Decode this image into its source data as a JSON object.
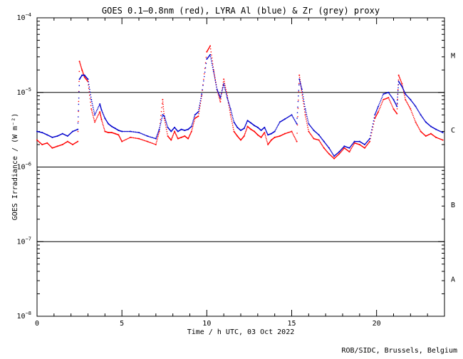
{
  "chart_data": {
    "type": "scatter",
    "title": "GOES 0.1–0.8nm (red), LYRA Al (blue) & Zr (grey) proxy",
    "xlabel": "Time / h UTC, 03 Oct 2022",
    "ylabel": "GOES Irradiance / (W m⁻²)",
    "xlim": [
      0,
      24
    ],
    "ylim_log10": [
      -8,
      -4
    ],
    "y_scale": "log",
    "grid": false,
    "x_ticks": [
      0,
      5,
      10,
      15,
      20
    ],
    "x_tick_labels": [
      "0",
      "5",
      "10",
      "15",
      "20"
    ],
    "y_ticks": [
      -8,
      -7,
      -6,
      -5,
      -4
    ],
    "y_tick_labels": [
      {
        "base": "10",
        "exp": "−8"
      },
      {
        "base": "10",
        "exp": "−7"
      },
      {
        "base": "10",
        "exp": "−6"
      },
      {
        "base": "10",
        "exp": "−5"
      },
      {
        "base": "10",
        "exp": "−4"
      }
    ],
    "class_lines": [
      -5,
      -6,
      -7
    ],
    "class_labels": [
      {
        "label": "M",
        "y_log10": -4.5
      },
      {
        "label": "C",
        "y_log10": -5.5
      },
      {
        "label": "B",
        "y_log10": -6.5
      },
      {
        "label": "A",
        "y_log10": -7.5
      }
    ],
    "series": [
      {
        "name": "GOES 0.1–0.8nm",
        "color": "#ff0000",
        "x": [
          0.0,
          0.3,
          0.6,
          0.9,
          1.2,
          1.5,
          1.8,
          2.1,
          2.4,
          2.5,
          2.65,
          2.8,
          3.0,
          3.2,
          3.4,
          3.7,
          3.8,
          4.0,
          4.2,
          4.4,
          4.6,
          4.8,
          5.0,
          5.5,
          6.0,
          6.5,
          7.0,
          7.2,
          7.4,
          7.5,
          7.7,
          7.9,
          8.1,
          8.3,
          8.5,
          8.7,
          8.9,
          9.1,
          9.3,
          9.5,
          9.7,
          10.0,
          10.2,
          10.4,
          10.6,
          10.8,
          11.0,
          11.2,
          11.4,
          11.6,
          11.8,
          12.0,
          12.2,
          12.4,
          12.6,
          12.8,
          13.0,
          13.2,
          13.4,
          13.6,
          13.8,
          14.0,
          14.3,
          14.6,
          15.0,
          15.3,
          15.45,
          15.6,
          15.8,
          16.0,
          16.3,
          16.6,
          16.9,
          17.2,
          17.5,
          17.8,
          18.1,
          18.4,
          18.7,
          19.0,
          19.3,
          19.6,
          19.9,
          20.1,
          20.4,
          20.7,
          21.0,
          21.2,
          21.3,
          21.5,
          21.7,
          22.0,
          22.3,
          22.6,
          22.9,
          23.2,
          23.5,
          23.9
        ],
        "y": [
          2.3e-06,
          2e-06,
          2.1e-06,
          1.8e-06,
          1.9e-06,
          2e-06,
          2.2e-06,
          2e-06,
          2.2e-06,
          2.6e-05,
          2e-05,
          1.6e-05,
          1.4e-05,
          6e-06,
          4e-06,
          5.5e-06,
          4.3e-06,
          3e-06,
          2.9e-06,
          2.9e-06,
          2.8e-06,
          2.7e-06,
          2.2e-06,
          2.5e-06,
          2.4e-06,
          2.2e-06,
          2e-06,
          3e-06,
          8e-06,
          4.5e-06,
          2.6e-06,
          2.3e-06,
          3e-06,
          2.4e-06,
          2.5e-06,
          2.6e-06,
          2.4e-06,
          3e-06,
          4.5e-06,
          4.8e-06,
          9e-06,
          3.5e-05,
          4.2e-05,
          2e-05,
          1.1e-05,
          7.5e-06,
          1.5e-05,
          9e-06,
          5e-06,
          3e-06,
          2.6e-06,
          2.3e-06,
          2.6e-06,
          3.5e-06,
          3.2e-06,
          3e-06,
          2.7e-06,
          2.5e-06,
          2.9e-06,
          2e-06,
          2.3e-06,
          2.5e-06,
          2.6e-06,
          2.8e-06,
          3e-06,
          2.2e-06,
          1.7e-05,
          1e-05,
          5e-06,
          3e-06,
          2.4e-06,
          2.3e-06,
          1.8e-06,
          1.5e-06,
          1.3e-06,
          1.5e-06,
          1.8e-06,
          1.6e-06,
          2.1e-06,
          2e-06,
          1.8e-06,
          2.2e-06,
          4.5e-06,
          5.5e-06,
          8e-06,
          8.5e-06,
          6e-06,
          5.2e-06,
          1.7e-05,
          1.3e-05,
          8e-06,
          6e-06,
          4e-06,
          3e-06,
          2.6e-06,
          2.8e-06,
          2.5e-06,
          2.3e-06
        ]
      },
      {
        "name": "LYRA Al proxy",
        "color": "#0000cc",
        "x": [
          0.0,
          0.3,
          0.6,
          0.9,
          1.2,
          1.5,
          1.8,
          2.1,
          2.4,
          2.5,
          2.65,
          2.8,
          3.0,
          3.2,
          3.4,
          3.7,
          3.8,
          4.0,
          4.2,
          4.4,
          4.6,
          4.8,
          5.0,
          5.5,
          6.0,
          6.5,
          7.0,
          7.2,
          7.4,
          7.5,
          7.7,
          7.9,
          8.1,
          8.3,
          8.5,
          8.7,
          8.9,
          9.1,
          9.3,
          9.5,
          9.7,
          10.0,
          10.2,
          10.4,
          10.6,
          10.8,
          11.0,
          11.2,
          11.4,
          11.6,
          11.8,
          12.0,
          12.2,
          12.4,
          12.6,
          12.8,
          13.0,
          13.2,
          13.4,
          13.6,
          13.8,
          14.0,
          14.3,
          14.6,
          15.0,
          15.3,
          15.45,
          15.6,
          15.8,
          16.0,
          16.3,
          16.6,
          16.9,
          17.2,
          17.5,
          17.8,
          18.1,
          18.4,
          18.7,
          19.0,
          19.3,
          19.6,
          19.9,
          20.1,
          20.4,
          20.7,
          21.0,
          21.2,
          21.3,
          21.5,
          21.7,
          22.0,
          22.3,
          22.6,
          22.9,
          23.2,
          23.5,
          23.9
        ],
        "y": [
          3e-06,
          2.9e-06,
          2.7e-06,
          2.5e-06,
          2.6e-06,
          2.8e-06,
          2.6e-06,
          3e-06,
          3.2e-06,
          1.5e-05,
          1.7e-05,
          1.7e-05,
          1.5e-05,
          8e-06,
          5e-06,
          7e-06,
          5.8e-06,
          4.5e-06,
          3.8e-06,
          3.5e-06,
          3.3e-06,
          3.1e-06,
          3e-06,
          3e-06,
          2.9e-06,
          2.6e-06,
          2.4e-06,
          3.2e-06,
          5e-06,
          4.8e-06,
          3.4e-06,
          3e-06,
          3.4e-06,
          3e-06,
          3.2e-06,
          3.1e-06,
          3.2e-06,
          3.5e-06,
          5e-06,
          5.5e-06,
          9.5e-06,
          2.8e-05,
          3.2e-05,
          1.9e-05,
          1.1e-05,
          8.5e-06,
          1.3e-05,
          8.5e-06,
          6e-06,
          4e-06,
          3.4e-06,
          3.1e-06,
          3.3e-06,
          4.2e-06,
          3.9e-06,
          3.6e-06,
          3.4e-06,
          3.1e-06,
          3.4e-06,
          2.7e-06,
          2.8e-06,
          3e-06,
          4e-06,
          4.4e-06,
          5e-06,
          3.8e-06,
          1.5e-05,
          1.1e-05,
          6e-06,
          3.8e-06,
          3.1e-06,
          2.7e-06,
          2.2e-06,
          1.8e-06,
          1.4e-06,
          1.6e-06,
          1.9e-06,
          1.8e-06,
          2.2e-06,
          2.2e-06,
          2e-06,
          2.4e-06,
          5e-06,
          6.5e-06,
          9.5e-06,
          1e-05,
          8e-06,
          6.5e-06,
          1.4e-05,
          1.2e-05,
          9.5e-06,
          8e-06,
          6.5e-06,
          5e-06,
          4e-06,
          3.5e-06,
          3.2e-06,
          2.9e-06
        ]
      }
    ]
  },
  "footer": {
    "credit": "ROB/SIDC, Brussels, Belgium"
  }
}
